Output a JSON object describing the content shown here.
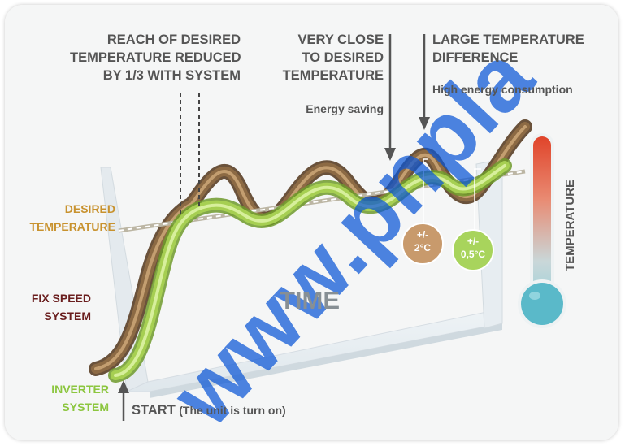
{
  "labels": {
    "reach": [
      "REACH OF DESIRED",
      "TEMPERATURE REDUCED",
      "BY 1/3 WITH SYSTEM"
    ],
    "very_close": [
      "VERY CLOSE",
      "TO DESIRED",
      "TEMPERATURE"
    ],
    "energy_saving": "Energy saving",
    "large_diff": [
      "LARGE TEMPERATURE",
      "DIFFERENCE"
    ],
    "high_consumption": "High energy consumption",
    "desired": [
      "DESIRED",
      "TEMPERATURE"
    ],
    "fix_speed": [
      "FIX SPEED",
      "SYSTEM"
    ],
    "inverter": [
      "INVERTER",
      "SYSTEM"
    ],
    "start_bold": "START",
    "start_note": "(The unit is turn on)",
    "time": "TIME",
    "temperature": "TEMPERATURE"
  },
  "badges": {
    "fix": {
      "top": "+/-",
      "bottom": "2°C"
    },
    "inverter": {
      "top": "+/-",
      "bottom": "0,5°C"
    }
  },
  "watermark": "www.pnpla",
  "colors": {
    "fix_speed": "#8c6a44",
    "inverter": "#a6cf52",
    "desired_label": "#c8922e",
    "fix_label": "#6a1e1e",
    "inverter_label": "#8cc63f",
    "thermo_top": "#e0442a",
    "thermo_bulb": "#5ab9c9",
    "watermark": "#0a55d6"
  }
}
